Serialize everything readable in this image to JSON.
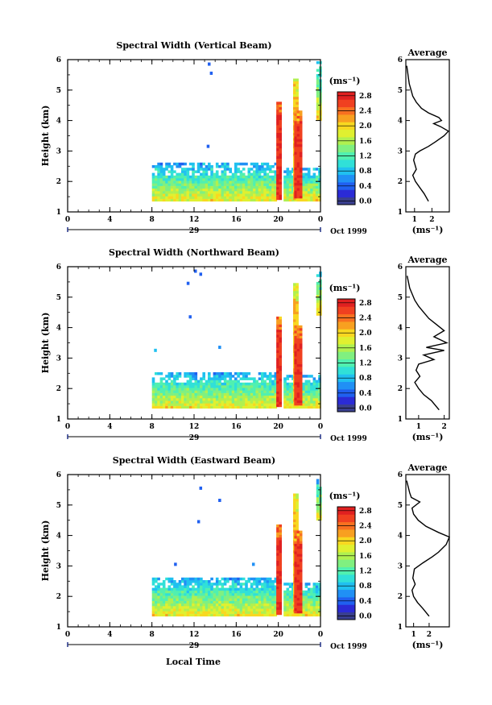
{
  "figure": {
    "xlabel": "Local Time",
    "date_label": "Oct 1999",
    "day_label": "29",
    "colorbar_unit": "(ms⁻¹)",
    "avg_title": "Average",
    "avg_xlabel": "(ms⁻¹)"
  },
  "chart_data": [
    {
      "type": "heatmap",
      "title": "Spectral Width (Vertical Beam)",
      "ylabel": "Height (km)",
      "xlim": [
        0,
        24
      ],
      "x_ticks": [
        "0",
        "4",
        "8",
        "12",
        "16",
        "20",
        "0"
      ],
      "ylim": [
        1,
        6
      ],
      "y_ticks": [
        "1",
        "2",
        "3",
        "4",
        "5",
        "6"
      ],
      "colorbar_ticks": [
        "0.0",
        "0.4",
        "0.8",
        "1.2",
        "1.6",
        "2.0",
        "2.4",
        "2.8"
      ],
      "colorbar_range": [
        0,
        3.0
      ],
      "echo_blocks": [
        {
          "t0": 8.0,
          "t1": 19.7,
          "h0": 1.35,
          "h1": 2.55,
          "value": 0.9
        },
        {
          "t0": 20.5,
          "t1": 23.9,
          "h0": 1.35,
          "h1": 2.45,
          "value": 0.9
        },
        {
          "t0": 19.8,
          "t1": 20.1,
          "h0": 1.4,
          "h1": 4.6,
          "value": 2.9
        },
        {
          "t0": 21.4,
          "t1": 21.8,
          "h0": 1.4,
          "h1": 5.3,
          "value": 2.3
        },
        {
          "t0": 21.5,
          "t1": 22.1,
          "h0": 1.45,
          "h1": 4.3,
          "value": 2.9
        },
        {
          "t0": 23.6,
          "t1": 23.9,
          "h0": 4.0,
          "h1": 5.9,
          "value": 1.0
        }
      ],
      "specks": [
        {
          "t": 13.3,
          "h": 5.8,
          "value": 0.5
        },
        {
          "t": 13.5,
          "h": 5.5,
          "value": 0.4
        },
        {
          "t": 13.2,
          "h": 3.1,
          "value": 0.5
        }
      ],
      "average": {
        "xlim": [
          0.5,
          3.0
        ],
        "x_ticks": [
          "1",
          "2"
        ],
        "ylim": [
          1,
          6
        ],
        "y_ticks": [
          "1",
          "2",
          "3",
          "4",
          "5",
          "6"
        ],
        "values": [
          [
            1.8,
            1.35
          ],
          [
            1.55,
            1.6
          ],
          [
            1.3,
            1.8
          ],
          [
            1.05,
            2.0
          ],
          [
            0.9,
            2.2
          ],
          [
            1.1,
            2.4
          ],
          [
            0.95,
            2.7
          ],
          [
            1.05,
            2.9
          ],
          [
            1.3,
            3.0
          ],
          [
            1.8,
            3.15
          ],
          [
            2.2,
            3.3
          ],
          [
            2.7,
            3.5
          ],
          [
            2.95,
            3.65
          ],
          [
            2.5,
            3.8
          ],
          [
            2.1,
            3.9
          ],
          [
            2.55,
            4.0
          ],
          [
            2.4,
            4.1
          ],
          [
            1.8,
            4.25
          ],
          [
            1.4,
            4.4
          ],
          [
            1.1,
            4.6
          ],
          [
            0.9,
            4.8
          ],
          [
            0.8,
            5.0
          ],
          [
            0.7,
            5.2
          ],
          [
            0.65,
            5.4
          ],
          [
            0.6,
            5.6
          ],
          [
            0.55,
            5.8
          ]
        ]
      }
    },
    {
      "type": "heatmap",
      "title": "Spectral Width (Northward Beam)",
      "ylabel": "Height (km)",
      "xlim": [
        0,
        24
      ],
      "x_ticks": [
        "0",
        "4",
        "8",
        "12",
        "16",
        "20",
        "0"
      ],
      "ylim": [
        1,
        6
      ],
      "y_ticks": [
        "1",
        "2",
        "3",
        "4",
        "5",
        "6"
      ],
      "colorbar_ticks": [
        "0.0",
        "0.4",
        "0.8",
        "1.2",
        "1.6",
        "2.0",
        "2.4",
        "2.8"
      ],
      "colorbar_range": [
        0,
        3.0
      ],
      "echo_blocks": [
        {
          "t0": 8.0,
          "t1": 19.7,
          "h0": 1.35,
          "h1": 2.5,
          "value": 0.9
        },
        {
          "t0": 20.5,
          "t1": 23.9,
          "h0": 1.35,
          "h1": 2.45,
          "value": 0.9
        },
        {
          "t0": 19.8,
          "t1": 20.1,
          "h0": 1.4,
          "h1": 4.3,
          "value": 2.9
        },
        {
          "t0": 21.4,
          "t1": 21.8,
          "h0": 1.4,
          "h1": 5.4,
          "value": 2.3
        },
        {
          "t0": 21.5,
          "t1": 22.1,
          "h0": 1.45,
          "h1": 4.0,
          "value": 2.9
        },
        {
          "t0": 23.6,
          "t1": 23.9,
          "h0": 4.4,
          "h1": 5.9,
          "value": 1.0
        }
      ],
      "specks": [
        {
          "t": 12.0,
          "h": 5.8,
          "value": 0.5
        },
        {
          "t": 12.5,
          "h": 5.7,
          "value": 0.4
        },
        {
          "t": 11.3,
          "h": 5.4,
          "value": 0.4
        },
        {
          "t": 11.5,
          "h": 4.3,
          "value": 0.5
        },
        {
          "t": 8.2,
          "h": 3.2,
          "value": 0.8
        },
        {
          "t": 14.3,
          "h": 3.3,
          "value": 0.7
        }
      ],
      "average": {
        "xlim": [
          0.5,
          2.2
        ],
        "x_ticks": [
          "1",
          "2"
        ],
        "ylim": [
          1,
          6
        ],
        "y_ticks": [
          "1",
          "2",
          "3",
          "4",
          "5",
          "6"
        ],
        "values": [
          [
            1.8,
            1.3
          ],
          [
            1.5,
            1.6
          ],
          [
            1.2,
            1.8
          ],
          [
            1.0,
            2.0
          ],
          [
            0.85,
            2.2
          ],
          [
            1.05,
            2.4
          ],
          [
            0.9,
            2.6
          ],
          [
            1.0,
            2.8
          ],
          [
            1.6,
            2.95
          ],
          [
            1.2,
            3.1
          ],
          [
            2.0,
            3.25
          ],
          [
            1.3,
            3.35
          ],
          [
            2.1,
            3.5
          ],
          [
            1.6,
            3.7
          ],
          [
            2.0,
            3.9
          ],
          [
            1.7,
            4.1
          ],
          [
            1.4,
            4.3
          ],
          [
            1.2,
            4.5
          ],
          [
            1.0,
            4.7
          ],
          [
            0.85,
            4.9
          ],
          [
            0.75,
            5.1
          ],
          [
            0.65,
            5.3
          ],
          [
            0.6,
            5.5
          ],
          [
            0.55,
            5.7
          ]
        ]
      }
    },
    {
      "type": "heatmap",
      "title": "Spectral Width (Eastward Beam)",
      "ylabel": "Height (km)",
      "xlim": [
        0,
        24
      ],
      "x_ticks": [
        "0",
        "4",
        "8",
        "12",
        "16",
        "20",
        "0"
      ],
      "ylim": [
        1,
        6
      ],
      "y_ticks": [
        "1",
        "2",
        "3",
        "4",
        "5",
        "6"
      ],
      "colorbar_ticks": [
        "0.0",
        "0.4",
        "0.8",
        "1.2",
        "1.6",
        "2.0",
        "2.4",
        "2.8"
      ],
      "colorbar_range": [
        0,
        3.0
      ],
      "echo_blocks": [
        {
          "t0": 8.0,
          "t1": 19.7,
          "h0": 1.35,
          "h1": 2.6,
          "value": 0.9
        },
        {
          "t0": 20.5,
          "t1": 23.9,
          "h0": 1.35,
          "h1": 2.45,
          "value": 0.9
        },
        {
          "t0": 19.8,
          "t1": 20.1,
          "h0": 1.4,
          "h1": 4.3,
          "value": 2.9
        },
        {
          "t0": 21.4,
          "t1": 21.8,
          "h0": 1.4,
          "h1": 5.3,
          "value": 2.3
        },
        {
          "t0": 21.5,
          "t1": 22.1,
          "h0": 1.45,
          "h1": 4.1,
          "value": 2.9
        },
        {
          "t0": 23.6,
          "t1": 23.9,
          "h0": 4.5,
          "h1": 5.8,
          "value": 1.0
        }
      ],
      "specks": [
        {
          "t": 12.5,
          "h": 5.5,
          "value": 0.5
        },
        {
          "t": 12.3,
          "h": 4.4,
          "value": 0.4
        },
        {
          "t": 14.3,
          "h": 5.1,
          "value": 0.5
        },
        {
          "t": 10.1,
          "h": 3.0,
          "value": 0.6
        },
        {
          "t": 17.5,
          "h": 3.0,
          "value": 0.7
        }
      ],
      "average": {
        "xlim": [
          0.5,
          3.3
        ],
        "x_ticks": [
          "1",
          "2"
        ],
        "ylim": [
          1,
          6
        ],
        "y_ticks": [
          "1",
          "2",
          "3",
          "4",
          "5",
          "6"
        ],
        "values": [
          [
            2.0,
            1.35
          ],
          [
            1.6,
            1.6
          ],
          [
            1.25,
            1.8
          ],
          [
            1.0,
            2.0
          ],
          [
            0.9,
            2.2
          ],
          [
            1.1,
            2.4
          ],
          [
            0.95,
            2.6
          ],
          [
            1.05,
            2.9
          ],
          [
            1.6,
            3.1
          ],
          [
            2.2,
            3.3
          ],
          [
            2.6,
            3.45
          ],
          [
            3.1,
            3.7
          ],
          [
            3.3,
            3.95
          ],
          [
            2.6,
            4.1
          ],
          [
            1.8,
            4.3
          ],
          [
            1.3,
            4.5
          ],
          [
            1.0,
            4.7
          ],
          [
            0.9,
            4.9
          ],
          [
            1.4,
            5.1
          ],
          [
            0.85,
            5.25
          ],
          [
            0.75,
            5.4
          ],
          [
            0.65,
            5.6
          ],
          [
            0.55,
            5.8
          ]
        ]
      }
    }
  ]
}
